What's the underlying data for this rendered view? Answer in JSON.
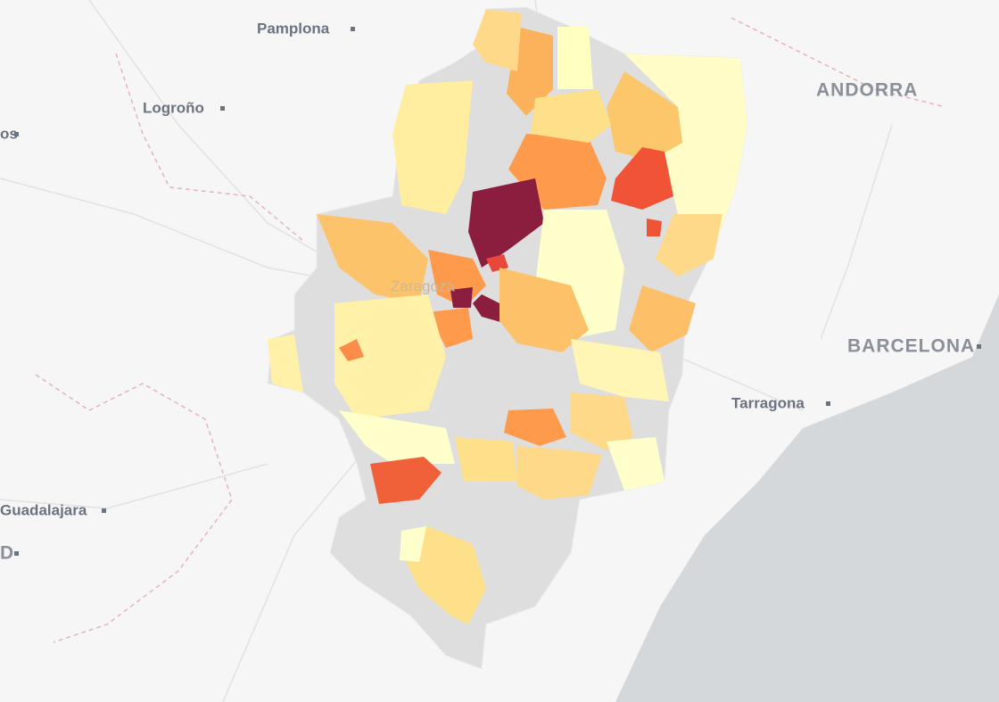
{
  "map": {
    "labels": {
      "pamplona": "Pamplona",
      "logrono": "Logroño",
      "left_cut": "os",
      "andorra": "ANDORRA",
      "barcelona": "BARCELONA",
      "tarragona": "Tarragona",
      "guadalajara": "Guadalajara",
      "madrid_cut": "D",
      "zaragoza": "Zaragoza"
    }
  }
}
